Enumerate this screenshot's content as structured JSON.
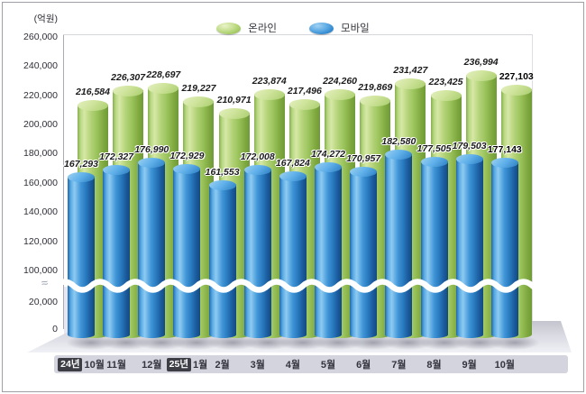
{
  "unit_label": "(억원)",
  "legend": {
    "items": [
      {
        "label": "온라인",
        "color": "#a6cc66"
      },
      {
        "label": "모바일",
        "color": "#3590d4"
      }
    ]
  },
  "colors": {
    "online": "#a6cc66",
    "online_dark": "#76a23c",
    "online_light": "#d6e8a6",
    "mobile": "#3590d4",
    "mobile_dark": "#144a80",
    "mobile_light": "#8ecbf2",
    "band_bg": "#d3d4de",
    "badge_bg": "#3c3d45",
    "floor": "#d9dae2",
    "lower_bg": "#e6e7f0",
    "axis_break_line": "#ffffff"
  },
  "chart_data": {
    "type": "bar",
    "title": "",
    "unit": "(억원)",
    "categories": [
      {
        "badge": "24년",
        "month": "10월"
      },
      {
        "month": "11월"
      },
      {
        "month": "12월"
      },
      {
        "badge": "25년",
        "month": "1월"
      },
      {
        "month": "2월"
      },
      {
        "month": "3월"
      },
      {
        "month": "4월"
      },
      {
        "month": "5월"
      },
      {
        "month": "6월"
      },
      {
        "month": "7월"
      },
      {
        "month": "8월"
      },
      {
        "month": "9월"
      },
      {
        "month": "10월"
      }
    ],
    "series": [
      {
        "name": "온라인",
        "values": [
          216584,
          226307,
          228697,
          219227,
          210971,
          223874,
          217496,
          224260,
          219869,
          231427,
          223425,
          236994,
          227103
        ]
      },
      {
        "name": "모바일",
        "values": [
          167293,
          172327,
          176990,
          172929,
          161553,
          172008,
          167824,
          174272,
          170957,
          182580,
          177505,
          179503,
          177143
        ]
      }
    ],
    "yticks": [
      0,
      20000,
      100000,
      120000,
      140000,
      160000,
      180000,
      200000,
      220000,
      240000,
      260000
    ],
    "axis_break": {
      "between": [
        20000,
        100000
      ]
    },
    "emphasize_last": true,
    "legend_position": "top-center",
    "grid": false
  }
}
